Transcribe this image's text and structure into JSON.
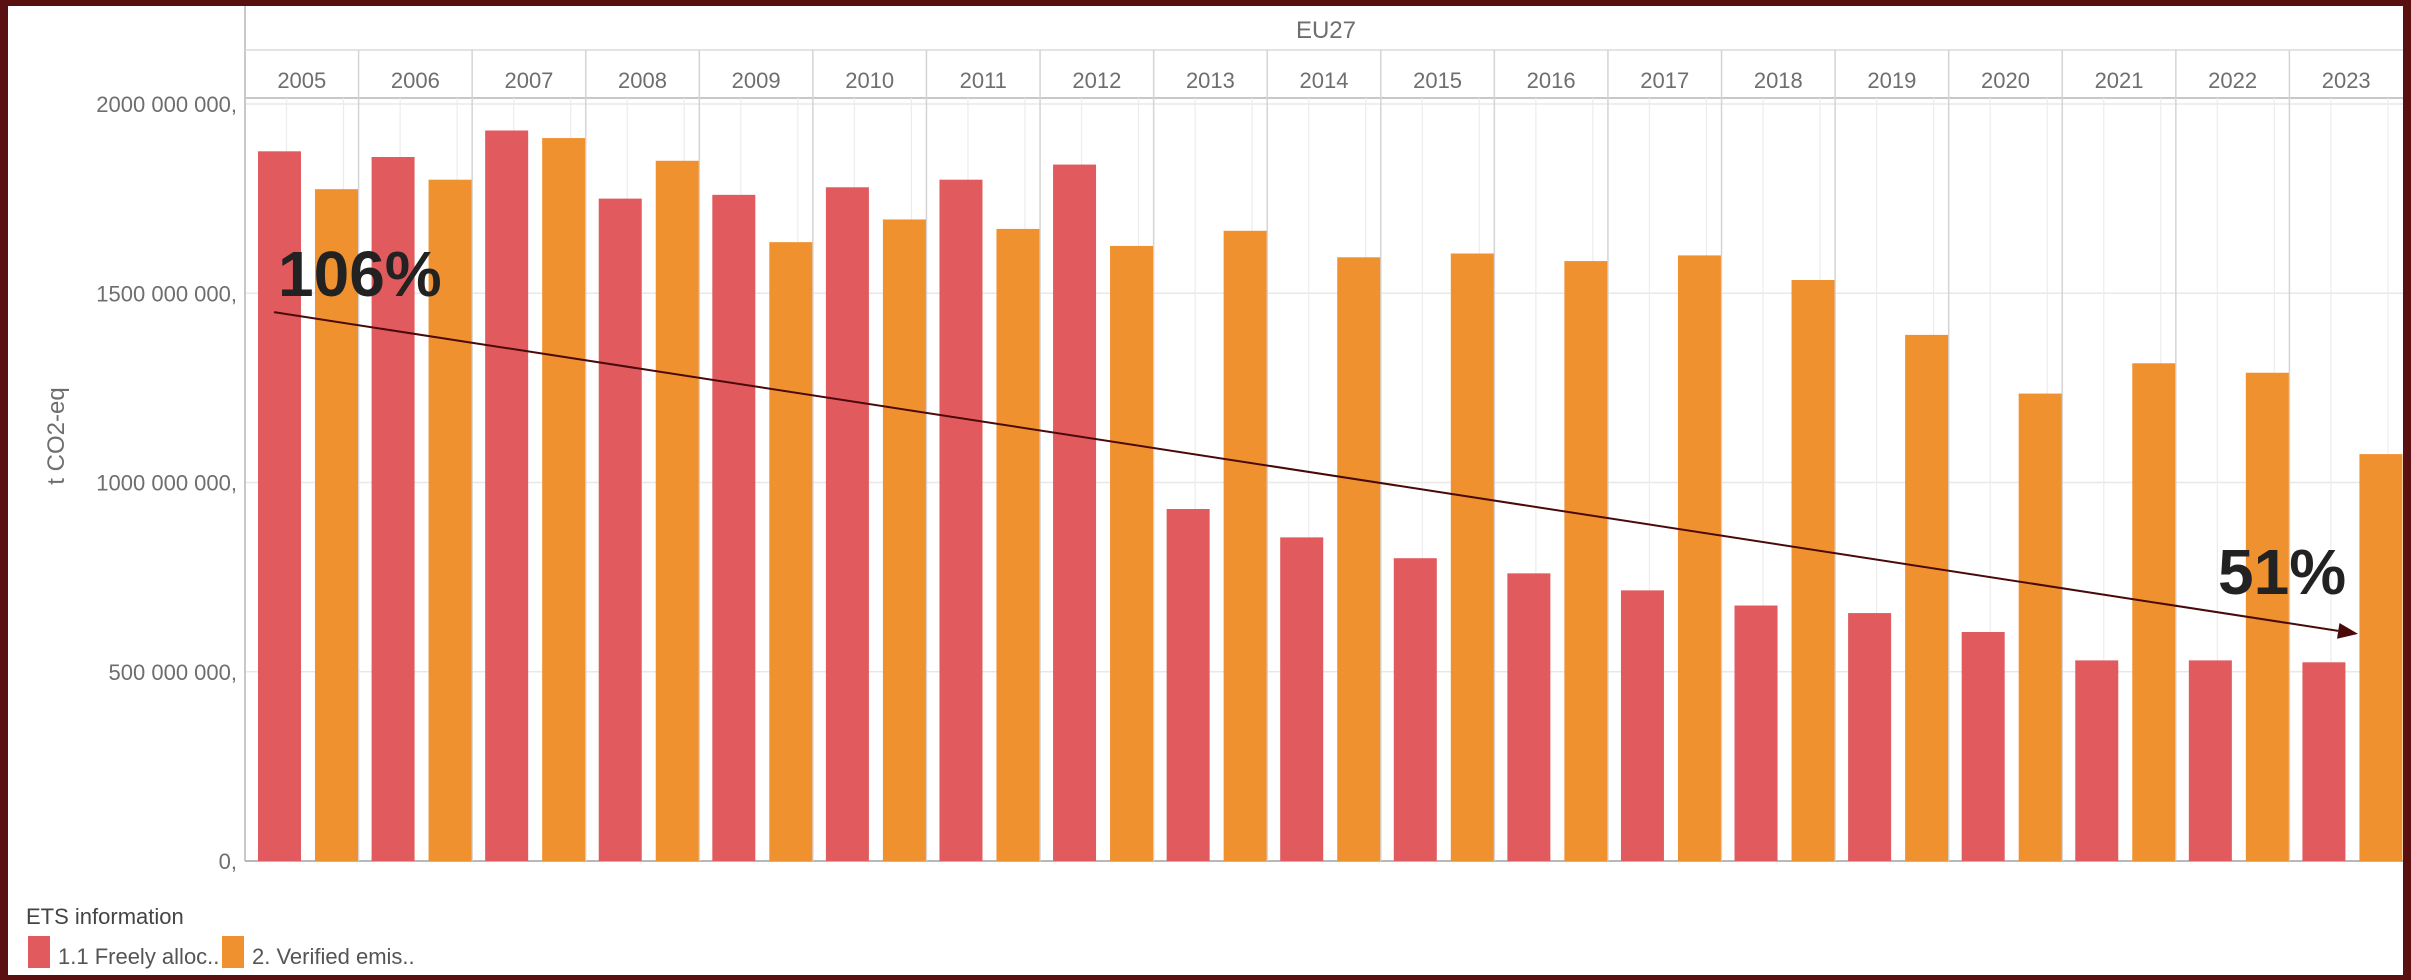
{
  "chart_data": {
    "type": "bar",
    "title": "EU27",
    "ylabel": "t CO2-eq",
    "xlabel": "",
    "ylim": [
      0,
      2000000000
    ],
    "y_ticks": [
      {
        "value": 0,
        "label": "0,"
      },
      {
        "value": 500000000,
        "label": "500 000 000,"
      },
      {
        "value": 1000000000,
        "label": "1000 000 000,"
      },
      {
        "value": 1500000000,
        "label": "1500 000 000,"
      },
      {
        "value": 2000000000,
        "label": "2000 000 000,"
      }
    ],
    "categories": [
      "2005",
      "2006",
      "2007",
      "2008",
      "2009",
      "2010",
      "2011",
      "2012",
      "2013",
      "2014",
      "2015",
      "2016",
      "2017",
      "2018",
      "2019",
      "2020",
      "2021",
      "2022",
      "2023"
    ],
    "series": [
      {
        "name": "1.1 Freely alloc..",
        "color": "#e05a5e",
        "values": [
          1875000000,
          1860000000,
          1930000000,
          1750000000,
          1760000000,
          1780000000,
          1800000000,
          1840000000,
          930000000,
          855000000,
          800000000,
          760000000,
          715000000,
          675000000,
          655000000,
          605000000,
          530000000,
          530000000,
          525000000
        ]
      },
      {
        "name": "2. Verified emis..",
        "color": "#f0912f",
        "values": [
          1775000000,
          1800000000,
          1910000000,
          1850000000,
          1635000000,
          1695000000,
          1670000000,
          1625000000,
          1665000000,
          1595000000,
          1605000000,
          1585000000,
          1600000000,
          1535000000,
          1390000000,
          1235000000,
          1315000000,
          1290000000,
          1075000000
        ]
      }
    ],
    "grid": true,
    "legend": {
      "title": "ETS information",
      "placement": "bottom-left"
    },
    "annotations": [
      {
        "text": "106%",
        "color": "#222222"
      },
      {
        "text": "51%",
        "color": "#222222"
      }
    ],
    "trend_arrow": {
      "from_value": 1450000000,
      "to_value": 600000000,
      "color": "#4a0a0a"
    }
  }
}
